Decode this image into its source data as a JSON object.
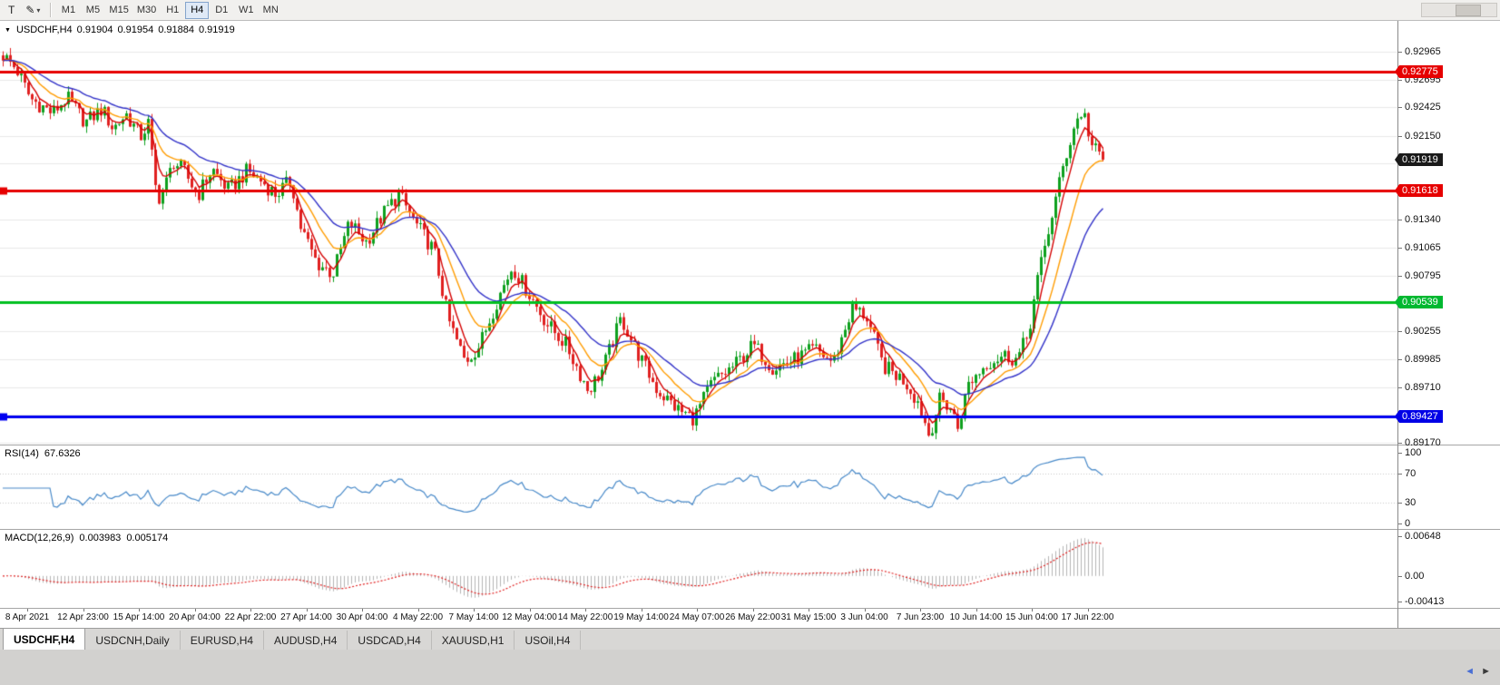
{
  "toolbar": {
    "tools": [
      {
        "glyph": "T"
      },
      {
        "glyph": "✎"
      }
    ],
    "caret": "▾",
    "timeframes": [
      "M1",
      "M5",
      "M15",
      "M30",
      "H1",
      "H4",
      "D1",
      "W1",
      "MN"
    ],
    "active_timeframe": "H4"
  },
  "chart": {
    "symbol_period": "USDCHF,H4",
    "marker": "▼",
    "ohlc": {
      "open": "0.91904",
      "high": "0.91954",
      "low": "0.91884",
      "close": "0.91919"
    }
  },
  "indicators": {
    "rsi": {
      "label": "RSI(14)",
      "value": "67.6326",
      "period": 14,
      "color": "#4688C8",
      "axis_labels": [
        "100",
        "70",
        "30",
        "0"
      ],
      "axis_values": [
        100,
        70,
        30,
        0
      ],
      "levels": [
        70,
        30
      ]
    },
    "macd": {
      "label": "MACD(12,26,9)",
      "value_main": "0.003983",
      "value_signal": "0.005174",
      "fast": 12,
      "slow": 26,
      "signal": 9,
      "bar_color": "#b4b4b4",
      "signal_color": "#E02020",
      "axis_labels": [
        "0.00648",
        "0.00",
        "-0.00413"
      ],
      "axis_values": [
        0.00648,
        0,
        -0.00413
      ]
    }
  },
  "time_axis": [
    "8 Apr 2021",
    "12 Apr 23:00",
    "15 Apr 14:00",
    "20 Apr 04:00",
    "22 Apr 22:00",
    "27 Apr 14:00",
    "30 Apr 04:00",
    "4 May 22:00",
    "7 May 14:00",
    "12 May 04:00",
    "14 May 22:00",
    "19 May 14:00",
    "24 May 07:00",
    "26 May 22:00",
    "31 May 15:00",
    "3 Jun 04:00",
    "7 Jun 23:00",
    "10 Jun 14:00",
    "15 Jun 04:00",
    "17 Jun 22:00"
  ],
  "tabs": {
    "items": [
      {
        "label": "USDCHF,H4",
        "active": true
      },
      {
        "label": "USDCNH,Daily",
        "active": false
      },
      {
        "label": "EURUSD,H4",
        "active": false
      },
      {
        "label": "AUDUSD,H4",
        "active": false
      },
      {
        "label": "USDCAD,H4",
        "active": false
      },
      {
        "label": "XAUUSD,H1",
        "active": false
      },
      {
        "label": "USOil,H4",
        "active": false
      }
    ]
  },
  "bottom": {
    "left_arrow": "◄",
    "right_arrow": "►"
  },
  "chart_data": {
    "type": "candlestick",
    "symbol": "USDCHF",
    "timeframe": "H4",
    "bars": 304,
    "last_price": 0.91919,
    "axis": {
      "price_max": 0.9323,
      "price_min": 0.8918
    },
    "grid_prices": [
      0.92965,
      0.92695,
      0.92425,
      0.9215,
      0.9188,
      0.9161,
      0.9134,
      0.91065,
      0.90795,
      0.90525,
      0.90255,
      0.89985,
      0.8971,
      0.8944,
      0.8917
    ],
    "price_labels": [
      0.92965,
      0.92695,
      0.92425,
      0.9215,
      0.9134,
      0.91065,
      0.90795,
      0.90525,
      0.90255,
      0.89985,
      0.8971,
      0.8917
    ],
    "price_badges": [
      {
        "value": 0.92775,
        "color": "#E60000",
        "type": "resistance-line"
      },
      {
        "value": 0.91919,
        "color": "#1a1a1a",
        "type": "last-price"
      },
      {
        "value": 0.91618,
        "color": "#E60000",
        "type": "resistance-line"
      },
      {
        "value": 0.90539,
        "color": "#00B830",
        "type": "support-line"
      },
      {
        "value": 0.89427,
        "color": "#0000E6",
        "type": "support-line"
      }
    ],
    "hlines": [
      {
        "price": 0.92775,
        "color": "#E60000",
        "width": 3,
        "handle": false
      },
      {
        "price": 0.91618,
        "color": "#E60000",
        "width": 3,
        "handle": true
      },
      {
        "price": 0.90539,
        "color": "#00C020",
        "width": 3,
        "handle": false
      },
      {
        "price": 0.89427,
        "color": "#0000F0",
        "width": 3,
        "handle": true
      }
    ],
    "candle_colors": {
      "up": "#0EA01E",
      "down": "#E02020"
    },
    "moving_averages": [
      {
        "period": 5,
        "color": "#D40000"
      },
      {
        "period": 13,
        "color": "#FF9C00"
      },
      {
        "period": 27,
        "color": "#3232C8"
      }
    ],
    "trend_anchors": [
      [
        0,
        0.9293
      ],
      [
        0.012,
        0.928
      ],
      [
        0.025,
        0.9251
      ],
      [
        0.045,
        0.9237
      ],
      [
        0.058,
        0.9252
      ],
      [
        0.075,
        0.9228
      ],
      [
        0.09,
        0.9241
      ],
      [
        0.1,
        0.9222
      ],
      [
        0.112,
        0.9236
      ],
      [
        0.125,
        0.9214
      ],
      [
        0.132,
        0.9227
      ],
      [
        0.14,
        0.9152
      ],
      [
        0.148,
        0.9168
      ],
      [
        0.155,
        0.919
      ],
      [
        0.165,
        0.918
      ],
      [
        0.177,
        0.9157
      ],
      [
        0.19,
        0.9183
      ],
      [
        0.205,
        0.9162
      ],
      [
        0.222,
        0.9181
      ],
      [
        0.235,
        0.9171
      ],
      [
        0.248,
        0.9158
      ],
      [
        0.262,
        0.9172
      ],
      [
        0.27,
        0.9128
      ],
      [
        0.285,
        0.9092
      ],
      [
        0.3,
        0.9081
      ],
      [
        0.315,
        0.9131
      ],
      [
        0.33,
        0.9112
      ],
      [
        0.348,
        0.9143
      ],
      [
        0.36,
        0.9158
      ],
      [
        0.375,
        0.913
      ],
      [
        0.392,
        0.9103
      ],
      [
        0.405,
        0.9036
      ],
      [
        0.42,
        0.8996
      ],
      [
        0.433,
        0.9011
      ],
      [
        0.448,
        0.9052
      ],
      [
        0.463,
        0.9088
      ],
      [
        0.478,
        0.9062
      ],
      [
        0.495,
        0.9032
      ],
      [
        0.512,
        0.9012
      ],
      [
        0.532,
        0.8968
      ],
      [
        0.545,
        0.8988
      ],
      [
        0.562,
        0.9038
      ],
      [
        0.578,
        0.9002
      ],
      [
        0.595,
        0.8968
      ],
      [
        0.615,
        0.8948
      ],
      [
        0.628,
        0.8941
      ],
      [
        0.645,
        0.8976
      ],
      [
        0.665,
        0.8992
      ],
      [
        0.682,
        0.9012
      ],
      [
        0.7,
        0.899
      ],
      [
        0.718,
        0.8997
      ],
      [
        0.738,
        0.9008
      ],
      [
        0.755,
        0.8995
      ],
      [
        0.772,
        0.9048
      ],
      [
        0.785,
        0.904
      ],
      [
        0.8,
        0.8992
      ],
      [
        0.82,
        0.8977
      ],
      [
        0.833,
        0.8955
      ],
      [
        0.842,
        0.8924
      ],
      [
        0.852,
        0.896
      ],
      [
        0.862,
        0.895
      ],
      [
        0.868,
        0.8932
      ],
      [
        0.878,
        0.8975
      ],
      [
        0.895,
        0.8995
      ],
      [
        0.91,
        0.9002
      ],
      [
        0.922,
        0.8998
      ],
      [
        0.932,
        0.9022
      ],
      [
        0.94,
        0.9072
      ],
      [
        0.952,
        0.913
      ],
      [
        0.965,
        0.919
      ],
      [
        0.975,
        0.9228
      ],
      [
        0.982,
        0.924
      ],
      [
        0.99,
        0.9205
      ],
      [
        1,
        0.9192
      ]
    ]
  }
}
